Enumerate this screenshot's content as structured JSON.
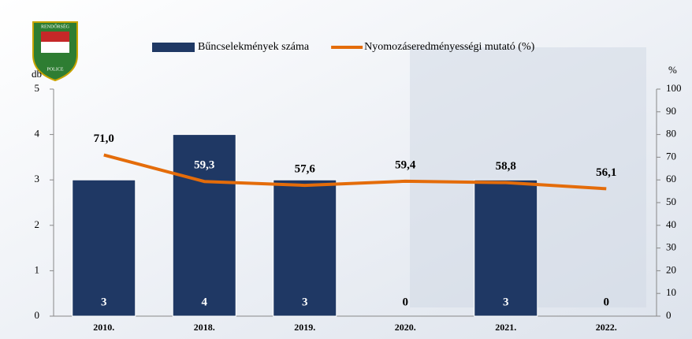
{
  "chart_data": {
    "type": "bar-line",
    "logo": {
      "top": "RENDŐRSÉG",
      "bottom": "POLICE"
    },
    "categories": [
      "2010.",
      "2018.",
      "2019.",
      "2020.",
      "2021.",
      "2022."
    ],
    "series": [
      {
        "name": "Bűncselekmények száma",
        "type": "bar",
        "color": "#1f3864",
        "values": [
          3,
          4,
          3,
          0,
          3,
          0
        ]
      },
      {
        "name": "Nyomozáseredményességi mutató (%)",
        "type": "line",
        "axis": "y2",
        "color": "#e46c0a",
        "values": [
          71.0,
          59.3,
          57.6,
          59.4,
          58.8,
          56.1
        ],
        "value_labels": [
          "71,0",
          "59,3",
          "57,6",
          "59,4",
          "58,8",
          "56,1"
        ]
      }
    ],
    "ylabel": "db",
    "ylim": [
      0,
      5
    ],
    "yticks": [
      0,
      1,
      2,
      3,
      4,
      5
    ],
    "y2label": "%",
    "y2lim": [
      0,
      100
    ],
    "y2ticks": [
      0,
      10,
      20,
      30,
      40,
      50,
      60,
      70,
      80,
      90,
      100
    ],
    "legend": "top"
  }
}
